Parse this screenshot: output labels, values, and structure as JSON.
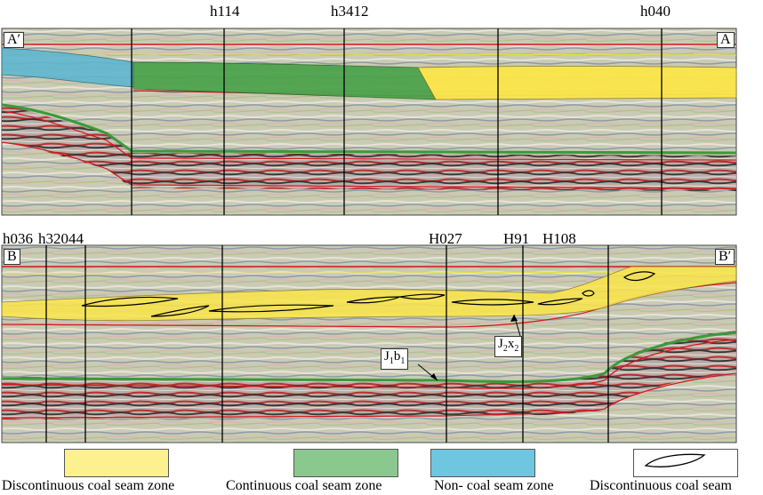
{
  "sections": {
    "top": {
      "left_end": "A′",
      "right_end": "A",
      "wells": [
        "h114",
        "h3412",
        "h040"
      ]
    },
    "bottom": {
      "left_end": "B",
      "right_end": "B′",
      "wells": [
        "h036",
        "h32044",
        "H027",
        "H91",
        "H108"
      ]
    }
  },
  "annotations": {
    "j1b1": {
      "main": "J",
      "sub1": "1",
      "mid": "b",
      "sub2": "1"
    },
    "j2x2": {
      "main": "J",
      "sub1": "2",
      "mid": "x",
      "sub2": "2"
    }
  },
  "legend": [
    {
      "label": "Discontinuous coal seam zone",
      "color": "#fdf08f"
    },
    {
      "label": "Continuous coal seam zone",
      "color": "#8bc88e"
    },
    {
      "label": "Non- coal seam zone",
      "color": "#6ec6e0"
    },
    {
      "label": "Discontinuous coal seam",
      "color": "#ffffff"
    }
  ],
  "colors": {
    "discontinuous_zone": "#fbe64a",
    "continuous_zone": "#4aa24a",
    "non_coal_zone": "#5fb6cf",
    "horizon": "#d4161c"
  }
}
